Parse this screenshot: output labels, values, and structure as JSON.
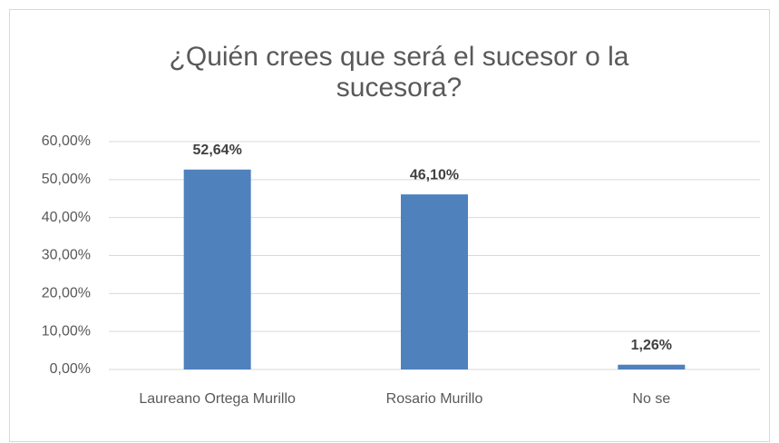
{
  "chart_data": {
    "type": "bar",
    "title": "¿Quién crees que será el sucesor o la sucesora?",
    "categories": [
      "Laureano Ortega Murillo",
      "Rosario Murillo",
      "No se"
    ],
    "values": [
      52.64,
      46.1,
      1.26
    ],
    "value_labels": [
      "52,64%",
      "46,10%",
      "1,26%"
    ],
    "color": "#4f81bd",
    "ylim": [
      0,
      60
    ],
    "yticks": [
      {
        "value": 0,
        "label": "0,00%"
      },
      {
        "value": 10,
        "label": "10,00%"
      },
      {
        "value": 20,
        "label": "20,00%"
      },
      {
        "value": 30,
        "label": "30,00%"
      },
      {
        "value": 40,
        "label": "40,00%"
      },
      {
        "value": 50,
        "label": "50,00%"
      },
      {
        "value": 60,
        "label": "60,00%"
      }
    ],
    "grid": true
  }
}
